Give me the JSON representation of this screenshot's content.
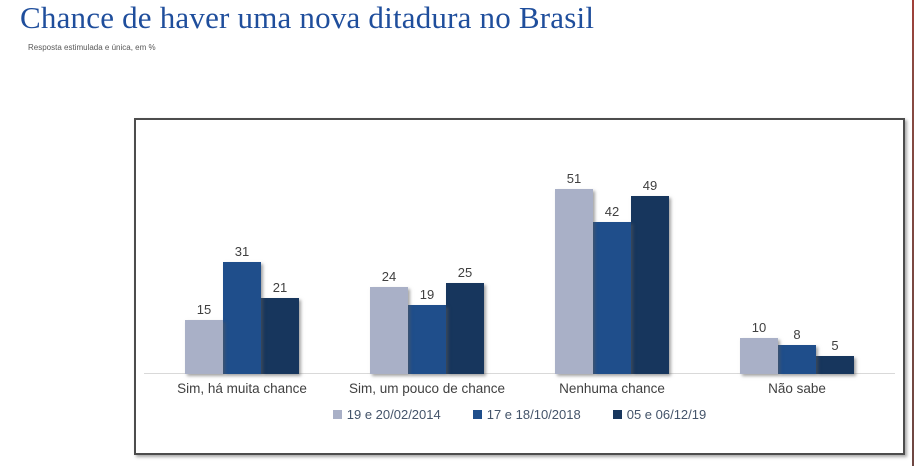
{
  "page": {
    "title": "Chance de haver uma nova ditadura no Brasil",
    "subtitle": "Resposta estimulada e única, em %"
  },
  "colors": {
    "title_blue": "#1f4e9c",
    "series_2014": "#a9b0c7",
    "series_2018": "#1f4e8b",
    "series_2019": "#17365d",
    "axis_line": "#d9d9d9",
    "chart_border": "#4d4d4d",
    "right_edge_line": "#8a4a42"
  },
  "chart_data": {
    "type": "bar",
    "title": "Chance de haver uma nova ditadura no Brasil",
    "subtitle": "Resposta estimulada e única, em %",
    "unit": "%",
    "categories": [
      "Sim, há muita chance",
      "Sim, um pouco de chance",
      "Nenhuma chance",
      "Não sabe"
    ],
    "series": [
      {
        "name": "19 e 20/02/2014",
        "color": "#a9b0c7",
        "values": [
          15,
          24,
          51,
          10
        ]
      },
      {
        "name": "17 e 18/10/2018",
        "color": "#1f4e8b",
        "values": [
          31,
          19,
          42,
          8
        ]
      },
      {
        "name": "05 e 06/12/19",
        "color": "#17365d",
        "values": [
          21,
          25,
          49,
          5
        ]
      }
    ],
    "value_labels": true,
    "ylim": [
      0,
      55
    ],
    "grid": false,
    "legend_position": "bottom",
    "xlabel": "",
    "ylabel": ""
  }
}
